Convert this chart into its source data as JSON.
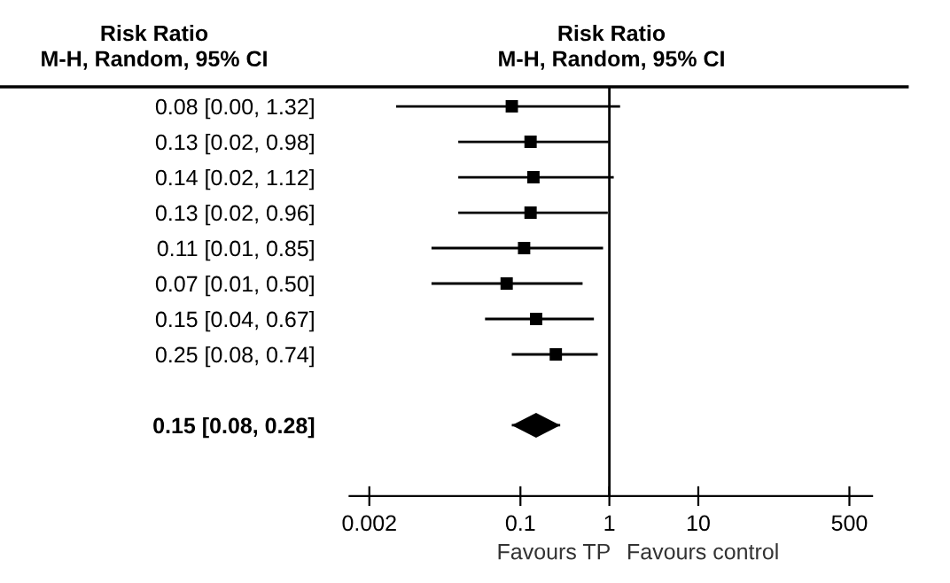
{
  "chart_data": {
    "type": "scatter",
    "categories": [
      "0.08 [0.00, 1.32]",
      "0.13 [0.02, 0.98]",
      "0.14 [0.02, 1.12]",
      "0.13 [0.02, 0.96]",
      "0.11 [0.01, 0.85]",
      "0.07 [0.01, 0.50]",
      "0.15 [0.04, 0.67]",
      "0.25 [0.08, 0.74]",
      null,
      "0.15 [0.08, 0.28]"
    ],
    "series": [
      {
        "color": "#000000",
        "marker": "square",
        "values": [
          0.08,
          0.13,
          0.14,
          0.13,
          0.11,
          0.07,
          0.15,
          0.25,
          null,
          null
        ],
        "errors": [
          [
            0.004,
            1.32
          ],
          [
            0.02,
            0.98
          ],
          [
            0.02,
            1.12
          ],
          [
            0.02,
            0.96
          ],
          [
            0.01,
            0.85
          ],
          [
            0.01,
            0.5
          ],
          [
            0.04,
            0.67
          ],
          [
            0.08,
            0.74
          ],
          null,
          null
        ]
      },
      {
        "color": "#000000",
        "marker": "diamond",
        "values": [
          null,
          null,
          null,
          null,
          null,
          null,
          null,
          null,
          null,
          0.15
        ],
        "errors": [
          null,
          null,
          null,
          null,
          null,
          null,
          null,
          null,
          null,
          [
            0.08,
            0.28
          ]
        ]
      }
    ],
    "orientation": "horizontal",
    "log": "x",
    "xlim": [
      0.0012,
      900
    ],
    "xticks": [
      0.002,
      0.1,
      1,
      10,
      500
    ],
    "ref_lines": [
      {
        "axis": "x",
        "value": 1,
        "label": null,
        "color": "#000000"
      }
    ],
    "annotations": [
      "Risk Ratio\nM-H, Random, 95% CI",
      "Risk Ratio\nM-H, Random, 95% CI",
      "Favours TP",
      "Favours control"
    ],
    "grid": false,
    "legend": false
  }
}
